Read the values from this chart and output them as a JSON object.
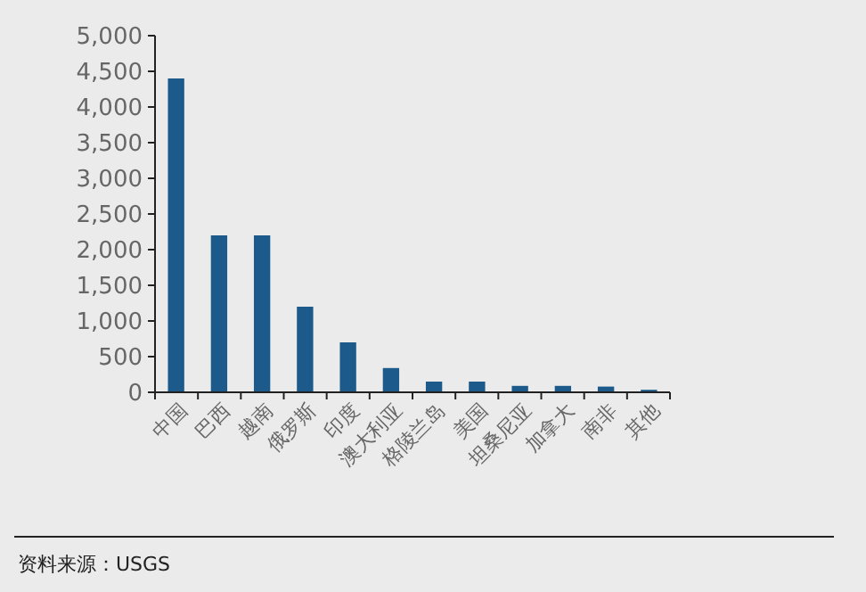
{
  "chart_data": {
    "type": "bar",
    "categories": [
      "中国",
      "巴西",
      "越南",
      "俄罗斯",
      "印度",
      "澳大利亚",
      "格陵兰岛",
      "美国",
      "坦桑尼亚",
      "加拿大",
      "南非",
      "其他"
    ],
    "values": [
      4400,
      2200,
      2200,
      1200,
      700,
      340,
      150,
      150,
      90,
      90,
      80,
      35
    ],
    "color": "#1b5a8a",
    "ylim": [
      0,
      5000
    ],
    "yticks": [
      {
        "value": 0,
        "label": "0"
      },
      {
        "value": 500,
        "label": "500"
      },
      {
        "value": 1000,
        "label": "1,000"
      },
      {
        "value": 1500,
        "label": "1,500"
      },
      {
        "value": 2000,
        "label": "2,000"
      },
      {
        "value": 2500,
        "label": "2,500"
      },
      {
        "value": 3000,
        "label": "3,000"
      },
      {
        "value": 3500,
        "label": "3,500"
      },
      {
        "value": 4000,
        "label": "4,000"
      },
      {
        "value": 4500,
        "label": "4,500"
      },
      {
        "value": 5000,
        "label": "5,000"
      }
    ],
    "annotations": [
      "资料来源：USGS"
    ]
  }
}
